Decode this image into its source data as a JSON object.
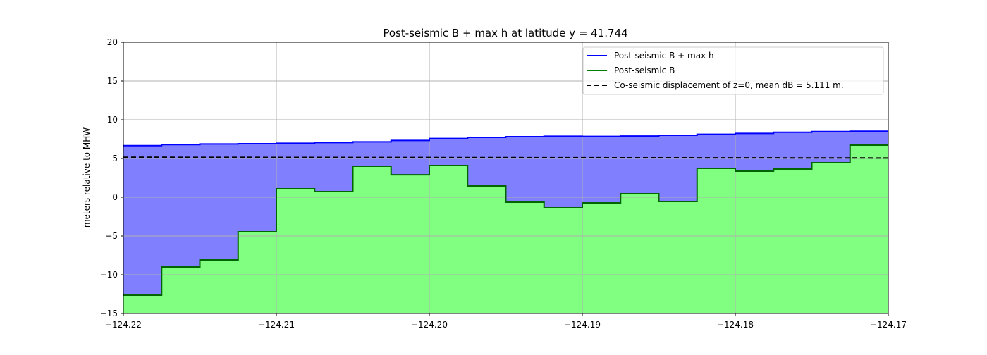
{
  "chart_data": {
    "type": "area",
    "title": "Post-seismic B + max h at latitude y = 41.744",
    "xlabel": "",
    "ylabel": "meters relative to MHW",
    "xlim": [
      -124.22,
      -124.17
    ],
    "ylim": [
      -15,
      20
    ],
    "grid": true,
    "legend_position": "top-right",
    "x_ticks": [
      "−124.22",
      "−124.21",
      "−124.20",
      "−124.19",
      "−124.18",
      "−124.17"
    ],
    "x_tick_values": [
      -124.22,
      -124.21,
      -124.2,
      -124.19,
      -124.18,
      -124.17
    ],
    "y_ticks": [
      "−15",
      "−10",
      "−5",
      "0",
      "5",
      "10",
      "15",
      "20"
    ],
    "y_tick_values": [
      -15,
      -10,
      -5,
      0,
      5,
      10,
      15,
      20
    ],
    "step_edges": [
      -124.22,
      -124.2175,
      -124.215,
      -124.2125,
      -124.21,
      -124.2075,
      -124.205,
      -124.2025,
      -124.2,
      -124.1975,
      -124.195,
      -124.1925,
      -124.19,
      -124.1875,
      -124.185,
      -124.1825,
      -124.18,
      -124.1775,
      -124.175,
      -124.1725,
      -124.17
    ],
    "series": [
      {
        "name": "Post-seismic B + max h",
        "color": "#0000ff",
        "fill": "#8080ff",
        "values": [
          6.66,
          6.79,
          6.88,
          6.91,
          6.97,
          7.06,
          7.15,
          7.33,
          7.58,
          7.73,
          7.82,
          7.88,
          7.85,
          7.9,
          8.0,
          8.12,
          8.24,
          8.39,
          8.48,
          8.52
        ]
      },
      {
        "name": "Post-seismic B",
        "color": "#008000",
        "fill": "#80ff80",
        "values": [
          -12.64,
          -9.0,
          -8.09,
          -4.45,
          1.09,
          0.73,
          4.0,
          2.9,
          4.09,
          1.45,
          -0.64,
          -1.36,
          -0.73,
          0.45,
          -0.55,
          3.73,
          3.36,
          3.64,
          4.45,
          6.73
        ]
      },
      {
        "name": "Co-seismic displacement of z=0, mean dB = 5.111 m.",
        "color": "#000000",
        "style": "dashed",
        "x": [
          -124.22,
          -124.17
        ],
        "values": [
          5.16,
          5.06
        ]
      }
    ]
  }
}
